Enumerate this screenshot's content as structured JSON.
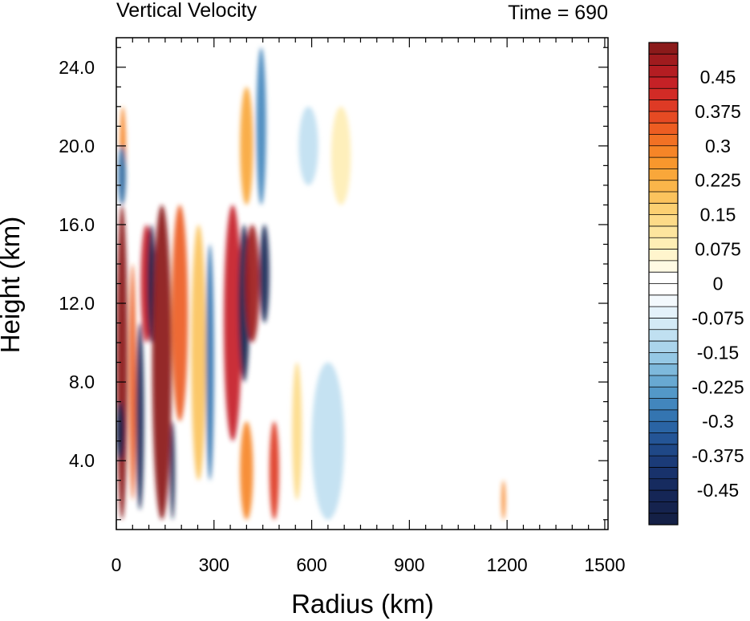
{
  "chart_data": {
    "type": "heatmap",
    "title": "Vertical Velocity",
    "time_label": "Time = 690",
    "xlabel": "Radius (km)",
    "ylabel": "Height (km)",
    "xlim": [
      0,
      1510
    ],
    "ylim": [
      0.5,
      25.5
    ],
    "x_ticks": [
      0,
      300,
      600,
      900,
      1200,
      1500
    ],
    "x_tick_labels": [
      "0",
      "300",
      "600",
      "900",
      "1200",
      "1500"
    ],
    "y_ticks": [
      4,
      8,
      12,
      16,
      20,
      24
    ],
    "y_tick_labels": [
      "4.0",
      "8.0",
      "12.0",
      "16.0",
      "20.0",
      "24.0"
    ],
    "grid": false,
    "legend_placement": "right colorbar",
    "colorbar": {
      "levels": [
        0.525,
        0.5,
        0.475,
        0.45,
        0.425,
        0.4,
        0.375,
        0.35,
        0.325,
        0.3,
        0.275,
        0.25,
        0.225,
        0.2,
        0.175,
        0.15,
        0.125,
        0.1,
        0.075,
        0.05,
        0.025,
        0,
        -0.025,
        -0.05,
        -0.075,
        -0.1,
        -0.125,
        -0.15,
        -0.175,
        -0.2,
        -0.225,
        -0.25,
        -0.275,
        -0.3,
        -0.325,
        -0.35,
        -0.375,
        -0.4,
        -0.425,
        -0.45,
        -0.475,
        -0.5,
        -0.525
      ],
      "tick_labels": [
        "0.45",
        "0.375",
        "0.3",
        "0.225",
        "0.15",
        "0.075",
        "0",
        "-0.075",
        "-0.15",
        "-0.225",
        "-0.3",
        "-0.375",
        "-0.45"
      ],
      "tick_values": [
        0.45,
        0.375,
        0.3,
        0.225,
        0.15,
        0.075,
        0,
        -0.075,
        -0.15,
        -0.225,
        -0.3,
        -0.375,
        -0.45
      ],
      "colors": [
        "#8b1a1a",
        "#a01b1e",
        "#b41d22",
        "#c52126",
        "#d22b26",
        "#de3a25",
        "#e64a23",
        "#ed5d22",
        "#f27124",
        "#f68527",
        "#f8972d",
        "#f9a73a",
        "#fab54a",
        "#fbc35d",
        "#fcd072",
        "#fddb88",
        "#fde59e",
        "#feeeb5",
        "#fff5cd",
        "#fffae4",
        "#ffffff",
        "#ffffff",
        "#f3f9fd",
        "#e4f2fa",
        "#d3eaf6",
        "#c0e0f1",
        "#abd4eb",
        "#95c8e5",
        "#7eb9dc",
        "#68a9d2",
        "#5398c8",
        "#4286bd",
        "#3475b1",
        "#2a64a4",
        "#245596",
        "#1f4887",
        "#1b3b78",
        "#18326b",
        "#162b5f",
        "#152656",
        "#15234e",
        "#142046"
      ]
    },
    "features": [
      {
        "kind": "up",
        "r0": 0,
        "r1": 35,
        "z0": 1,
        "z1": 17,
        "w": 0.52
      },
      {
        "kind": "up",
        "r0": 10,
        "r1": 30,
        "z0": 17,
        "z1": 22,
        "w": 0.3
      },
      {
        "kind": "down",
        "r0": 0,
        "r1": 25,
        "z0": 4,
        "z1": 7,
        "w": -0.5
      },
      {
        "kind": "down",
        "r0": 5,
        "r1": 30,
        "z0": 17,
        "z1": 20,
        "w": -0.3
      },
      {
        "kind": "up",
        "r0": 40,
        "r1": 60,
        "z0": 2,
        "z1": 14,
        "w": 0.35
      },
      {
        "kind": "down",
        "r0": 60,
        "r1": 85,
        "z0": 1.5,
        "z1": 11,
        "w": -0.45
      },
      {
        "kind": "up",
        "r0": 75,
        "r1": 110,
        "z0": 10,
        "z1": 16,
        "w": 0.45
      },
      {
        "kind": "down",
        "r0": 95,
        "r1": 120,
        "z0": 10,
        "z1": 16,
        "w": -0.5
      },
      {
        "kind": "up",
        "r0": 110,
        "r1": 170,
        "z0": 1,
        "z1": 17,
        "w": 0.55
      },
      {
        "kind": "down",
        "r0": 165,
        "r1": 180,
        "z0": 1,
        "z1": 6,
        "w": -0.5
      },
      {
        "kind": "up",
        "r0": 170,
        "r1": 220,
        "z0": 6,
        "z1": 17,
        "w": 0.35
      },
      {
        "kind": "up",
        "r0": 230,
        "r1": 275,
        "z0": 3,
        "z1": 16,
        "w": 0.2
      },
      {
        "kind": "down",
        "r0": 275,
        "r1": 300,
        "z0": 3,
        "z1": 15,
        "w": -0.3
      },
      {
        "kind": "up",
        "r0": 330,
        "r1": 385,
        "z0": 5,
        "z1": 17,
        "w": 0.45
      },
      {
        "kind": "down",
        "r0": 375,
        "r1": 410,
        "z0": 8,
        "z1": 16,
        "w": -0.5
      },
      {
        "kind": "up",
        "r0": 395,
        "r1": 440,
        "z0": 10,
        "z1": 16,
        "w": 0.5
      },
      {
        "kind": "down",
        "r0": 440,
        "r1": 470,
        "z0": 11,
        "z1": 16,
        "w": -0.45
      },
      {
        "kind": "up",
        "r0": 380,
        "r1": 420,
        "z0": 17,
        "z1": 23,
        "w": 0.25
      },
      {
        "kind": "down",
        "r0": 430,
        "r1": 460,
        "z0": 17,
        "z1": 25,
        "w": -0.25
      },
      {
        "kind": "up",
        "r0": 380,
        "r1": 420,
        "z0": 1,
        "z1": 6,
        "w": 0.3
      },
      {
        "kind": "up",
        "r0": 470,
        "r1": 500,
        "z0": 1,
        "z1": 6,
        "w": 0.4
      },
      {
        "kind": "up",
        "r0": 540,
        "r1": 570,
        "z0": 2,
        "z1": 9,
        "w": 0.15
      },
      {
        "kind": "down",
        "r0": 600,
        "r1": 700,
        "z0": 1,
        "z1": 9,
        "w": -0.1
      },
      {
        "kind": "up",
        "r0": 660,
        "r1": 720,
        "z0": 17,
        "z1": 22,
        "w": 0.1
      },
      {
        "kind": "down",
        "r0": 560,
        "r1": 620,
        "z0": 18,
        "z1": 22,
        "w": -0.1
      },
      {
        "kind": "up",
        "r0": 1183,
        "r1": 1195,
        "z0": 1,
        "z1": 3,
        "w": 0.3
      }
    ]
  }
}
